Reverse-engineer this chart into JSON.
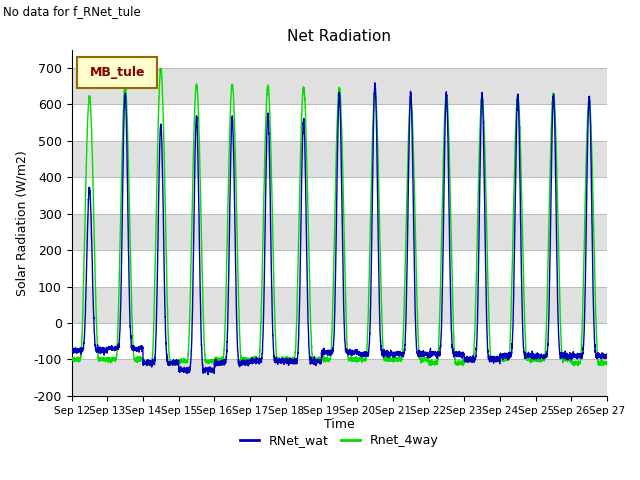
{
  "title": "Net Radiation",
  "no_data_text": "No data for f_RNet_tule",
  "legend_box_text": "MB_tule",
  "ylabel": "Solar Radiation (W/m2)",
  "xlabel": "Time",
  "ylim": [
    -200,
    750
  ],
  "yticks": [
    -200,
    -100,
    0,
    100,
    200,
    300,
    400,
    500,
    600,
    700
  ],
  "line1_label": "RNet_wat",
  "line1_color": "#0000bb",
  "line2_label": "Rnet_4way",
  "line2_color": "#00dd00",
  "background_color": "#ffffff",
  "grid_band_color": "#e0e0e0",
  "legend_box_bg": "#ffffcc",
  "legend_box_edge": "#996600",
  "legend_box_text_color": "#880000",
  "n_days": 15,
  "start_day": 12,
  "figwidth": 6.4,
  "figheight": 4.8,
  "dpi": 100
}
